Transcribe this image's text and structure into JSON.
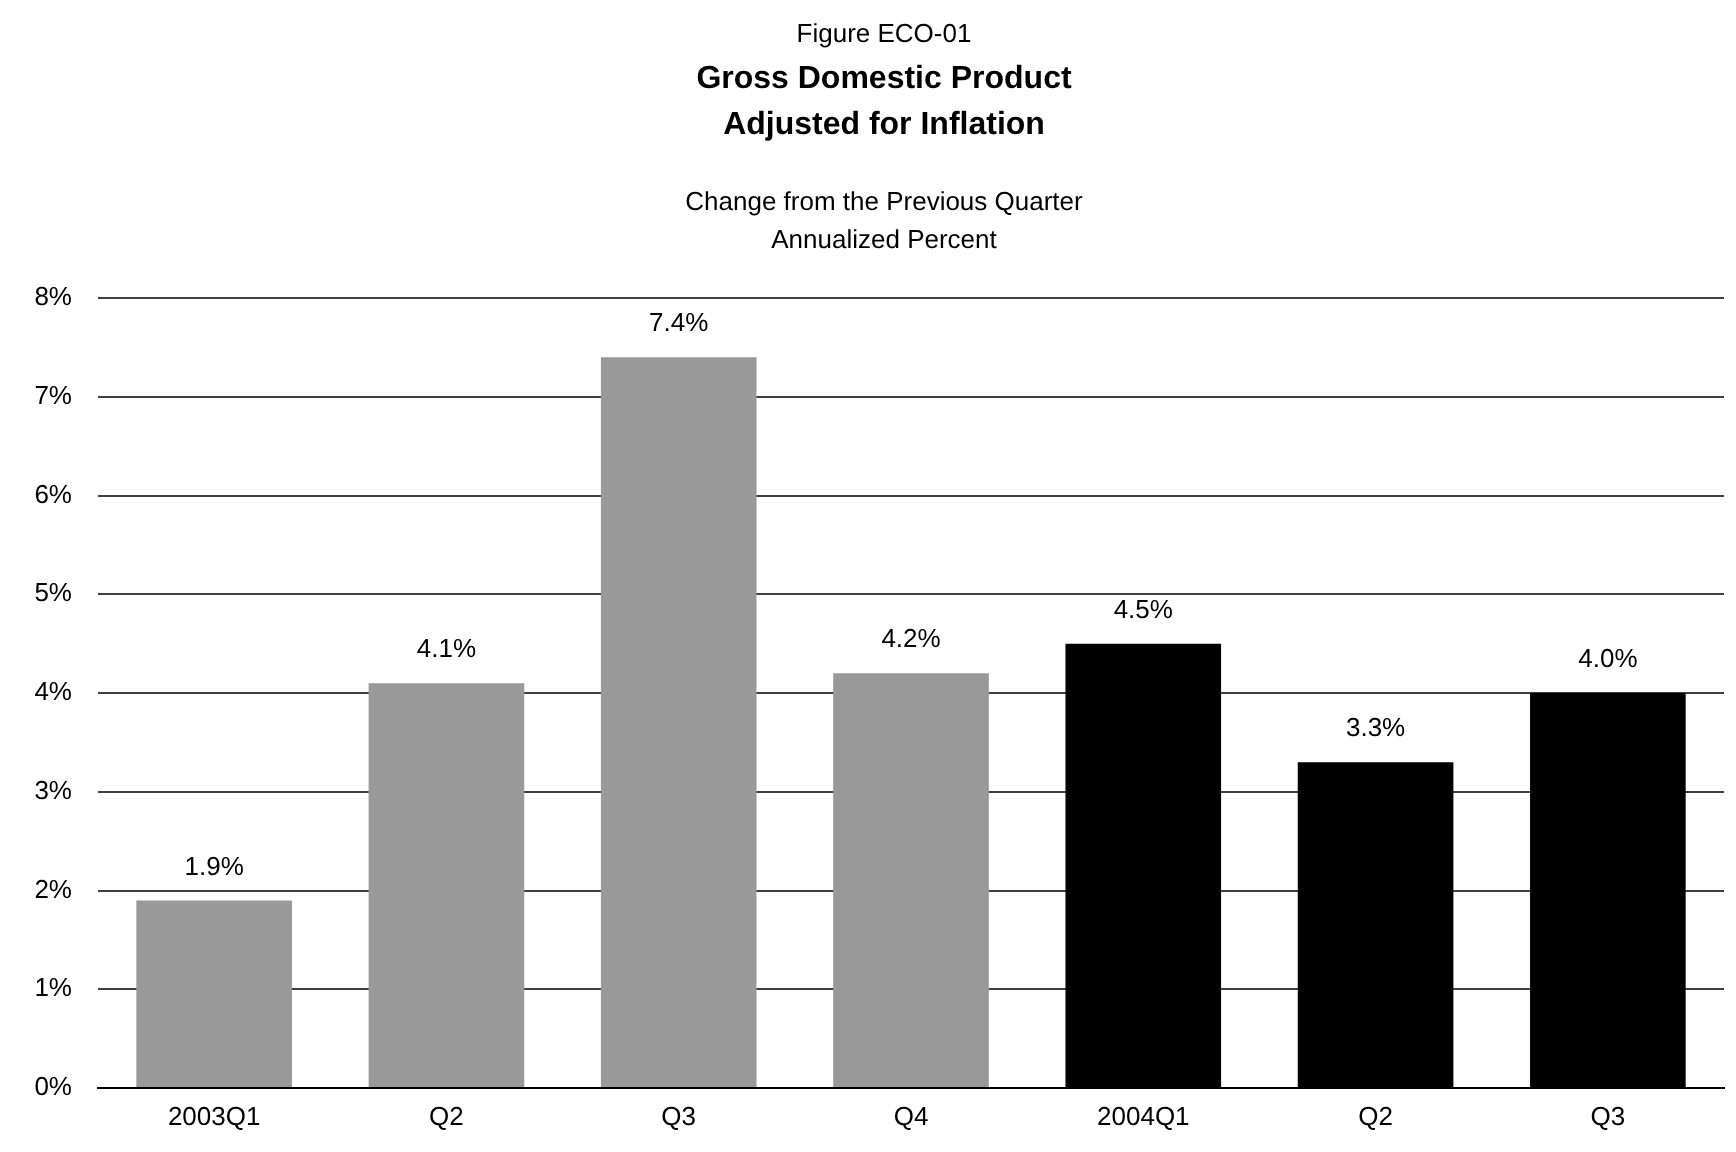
{
  "chart_data": {
    "type": "bar",
    "annotations": [
      "Figure ECO-01"
    ],
    "title": "Gross Domestic Product\nAdjusted for Inflation",
    "subtitle": "Change from the Previous Quarter\nAnnualized Percent",
    "categories": [
      "2003Q1",
      "Q2",
      "Q3",
      "Q4",
      "2004Q1",
      "Q2",
      "Q3"
    ],
    "values": [
      1.9,
      4.1,
      7.4,
      4.2,
      4.5,
      3.3,
      4.0
    ],
    "colors": [
      "#999999",
      "#999999",
      "#999999",
      "#999999",
      "#000000",
      "#000000",
      "#000000"
    ],
    "value_labels": [
      "1.9%",
      "4.1%",
      "7.4%",
      "4.2%",
      "4.5%",
      "3.3%",
      "4.0%"
    ],
    "ylim": [
      0,
      8
    ],
    "yticks": [
      {
        "value": 0,
        "label": "0%"
      },
      {
        "value": 1,
        "label": "1%"
      },
      {
        "value": 2,
        "label": "2%"
      },
      {
        "value": 3,
        "label": "3%"
      },
      {
        "value": 4,
        "label": "4%"
      },
      {
        "value": 5,
        "label": "5%"
      },
      {
        "value": 6,
        "label": "6%"
      },
      {
        "value": 7,
        "label": "7%"
      },
      {
        "value": 8,
        "label": "8%"
      }
    ],
    "grid": "y",
    "legend": false
  }
}
